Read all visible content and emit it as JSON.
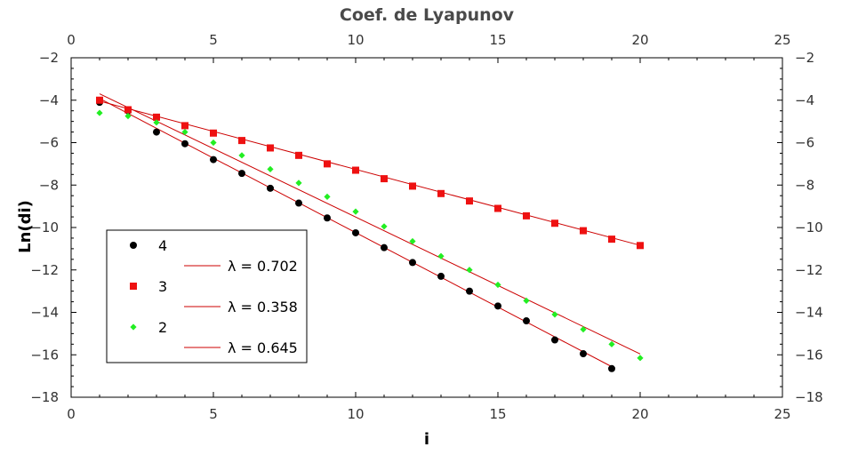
{
  "chart_data": {
    "type": "scatter",
    "title": "Coef. de Lyapunov",
    "xlabel": "i",
    "ylabel": "Ln(di)",
    "xlim": [
      0,
      25
    ],
    "ylim": [
      -18,
      -2
    ],
    "x_ticks": [
      0,
      5,
      10,
      15,
      20,
      25
    ],
    "y_ticks": [
      -18,
      -16,
      -14,
      -12,
      -10,
      -8,
      -6,
      -4,
      -2
    ],
    "x_tick_labels": [
      "0",
      "5",
      "10",
      "15",
      "20",
      "25"
    ],
    "y_tick_labels": [
      "−18",
      "−16",
      "−14",
      "−12",
      "−10",
      "−8",
      "−6",
      "−4",
      "−2"
    ],
    "grid": false,
    "legend_position": "bottom-left",
    "series": [
      {
        "name": "4",
        "marker": "circle",
        "color": "#000000",
        "x": [
          1,
          2,
          3,
          4,
          5,
          6,
          7,
          8,
          9,
          10,
          11,
          12,
          13,
          14,
          15,
          16,
          17,
          18,
          19
        ],
        "y": [
          -4.1,
          -4.5,
          -5.5,
          -6.05,
          -6.8,
          -7.45,
          -8.15,
          -8.85,
          -9.55,
          -10.25,
          -10.95,
          -11.65,
          -12.3,
          -13.0,
          -13.7,
          -14.4,
          -15.3,
          -15.95,
          -16.65
        ],
        "fit": {
          "label": "λ = 0.702",
          "x": [
            1,
            19
          ],
          "y": [
            -3.92,
            -16.56
          ]
        }
      },
      {
        "name": "3",
        "marker": "square",
        "color": "#ee1111",
        "x": [
          1,
          2,
          3,
          4,
          5,
          6,
          7,
          8,
          9,
          10,
          11,
          12,
          13,
          14,
          15,
          16,
          17,
          18,
          19,
          20
        ],
        "y": [
          -4.0,
          -4.45,
          -4.8,
          -5.2,
          -5.55,
          -5.9,
          -6.25,
          -6.6,
          -7.0,
          -7.3,
          -7.7,
          -8.05,
          -8.4,
          -8.75,
          -9.1,
          -9.45,
          -9.8,
          -10.15,
          -10.55,
          -10.85
        ],
        "fit": {
          "label": "λ = 0.358",
          "x": [
            1,
            20
          ],
          "y": [
            -4.04,
            -10.84
          ]
        }
      },
      {
        "name": "2",
        "marker": "diamond",
        "color": "#22ee22",
        "x": [
          1,
          2,
          3,
          4,
          5,
          6,
          7,
          8,
          9,
          10,
          11,
          12,
          13,
          14,
          15,
          16,
          17,
          18,
          19,
          20
        ],
        "y": [
          -4.6,
          -4.75,
          -5.05,
          -5.5,
          -6.0,
          -6.6,
          -7.25,
          -7.9,
          -8.55,
          -9.25,
          -9.95,
          -10.65,
          -11.35,
          -12.0,
          -12.7,
          -13.45,
          -14.1,
          -14.8,
          -15.5,
          -16.15
        ],
        "fit": {
          "label": "λ = 0.645",
          "x": [
            1,
            20
          ],
          "y": [
            -3.7,
            -15.96
          ]
        }
      }
    ],
    "fit_line_color": "#cc0000"
  }
}
